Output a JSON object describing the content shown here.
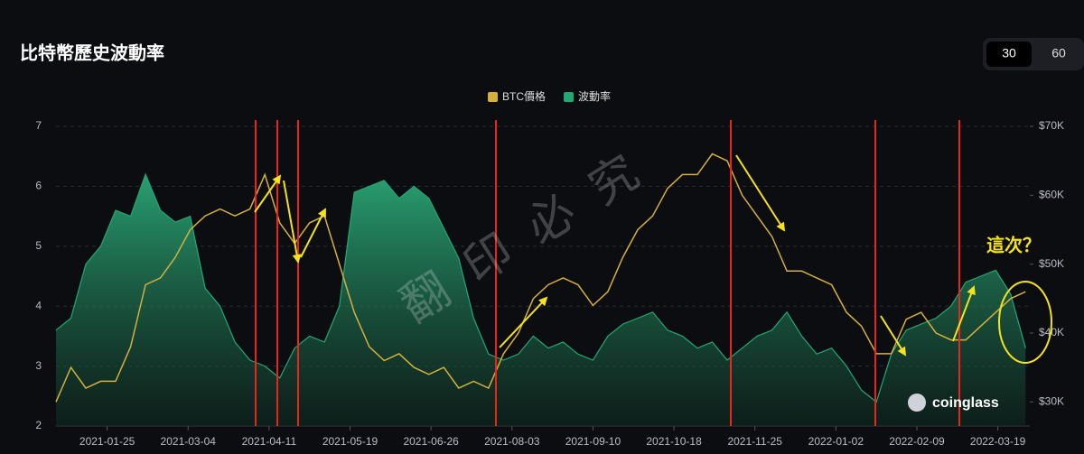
{
  "header": {
    "title": "比特幣歷史波動率"
  },
  "controls": {
    "periods": [
      "30",
      "60"
    ]
  },
  "chart_data": {
    "type": "line",
    "legend": "top",
    "grid": true,
    "annotation": "這次？",
    "watermark": "翻印必究",
    "logo": "coinglass",
    "x": [
      "2021-01-01",
      "2021-01-08",
      "2021-01-15",
      "2021-01-22",
      "2021-01-29",
      "2021-02-05",
      "2021-02-12",
      "2021-02-19",
      "2021-02-26",
      "2021-03-05",
      "2021-03-12",
      "2021-03-19",
      "2021-03-26",
      "2021-04-02",
      "2021-04-09",
      "2021-04-16",
      "2021-04-23",
      "2021-04-30",
      "2021-05-07",
      "2021-05-14",
      "2021-05-21",
      "2021-05-28",
      "2021-06-04",
      "2021-06-11",
      "2021-06-18",
      "2021-06-25",
      "2021-07-02",
      "2021-07-09",
      "2021-07-16",
      "2021-07-23",
      "2021-07-30",
      "2021-08-06",
      "2021-08-13",
      "2021-08-20",
      "2021-08-27",
      "2021-09-03",
      "2021-09-10",
      "2021-09-17",
      "2021-09-24",
      "2021-10-01",
      "2021-10-08",
      "2021-10-15",
      "2021-10-22",
      "2021-10-29",
      "2021-11-05",
      "2021-11-12",
      "2021-11-19",
      "2021-11-26",
      "2021-12-03",
      "2021-12-10",
      "2021-12-17",
      "2021-12-24",
      "2021-12-31",
      "2022-01-07",
      "2022-01-14",
      "2022-01-21",
      "2022-01-28",
      "2022-02-04",
      "2022-02-11",
      "2022-02-18",
      "2022-02-25",
      "2022-03-04",
      "2022-03-11",
      "2022-03-18",
      "2022-03-25",
      "2022-04-01"
    ],
    "xlim": [
      "2021-01-01",
      "2022-04-03"
    ],
    "xticks": [
      "2021-01-25",
      "2021-03-04",
      "2021-04-11",
      "2021-05-19",
      "2021-06-26",
      "2021-08-03",
      "2021-09-10",
      "2021-10-18",
      "2021-11-25",
      "2022-01-02",
      "2022-02-09",
      "2022-03-19"
    ],
    "ylim": [
      2,
      7
    ],
    "yticks": [
      2,
      3,
      4,
      5,
      6,
      7
    ],
    "y2lim": [
      26500,
      70000
    ],
    "y2ticks": [
      {
        "value": 30000,
        "label": "$30K"
      },
      {
        "value": 40000,
        "label": "$40K"
      },
      {
        "value": 50000,
        "label": "$50K"
      },
      {
        "value": 60000,
        "label": "$60K"
      },
      {
        "value": 70000,
        "label": "$70K"
      }
    ],
    "series": [
      {
        "name": "BTC價格",
        "color": "#d4b03c",
        "axis": "y2",
        "values": [
          30000,
          35000,
          32000,
          33000,
          33000,
          38000,
          47000,
          48000,
          51000,
          55000,
          57000,
          58000,
          57000,
          58000,
          63000,
          56000,
          53000,
          56000,
          57000,
          50000,
          43000,
          38000,
          36000,
          37000,
          35000,
          34000,
          35000,
          32000,
          33000,
          32000,
          37000,
          40000,
          45000,
          47000,
          48000,
          47000,
          44000,
          46000,
          51000,
          55000,
          57000,
          61000,
          63000,
          63000,
          66000,
          65000,
          60000,
          57000,
          54000,
          49000,
          49000,
          48000,
          47000,
          43000,
          41000,
          37000,
          37000,
          42000,
          43000,
          40000,
          39000,
          39000,
          41000,
          43000,
          45000,
          46000
        ]
      },
      {
        "name": "波動率",
        "color": "#22a874",
        "values": [
          3.6,
          3.8,
          4.7,
          5.0,
          5.6,
          5.5,
          6.2,
          5.6,
          5.4,
          5.5,
          4.3,
          4.0,
          3.4,
          3.1,
          3.0,
          2.8,
          3.3,
          3.5,
          3.4,
          4.0,
          5.9,
          6.0,
          6.1,
          5.8,
          6.0,
          5.8,
          5.3,
          4.8,
          3.8,
          3.2,
          3.1,
          3.2,
          3.5,
          3.3,
          3.4,
          3.2,
          3.1,
          3.5,
          3.7,
          3.8,
          3.9,
          3.6,
          3.5,
          3.3,
          3.4,
          3.1,
          3.3,
          3.5,
          3.6,
          3.9,
          3.5,
          3.2,
          3.3,
          3.0,
          2.6,
          2.4,
          3.2,
          3.6,
          3.7,
          3.8,
          4.0,
          4.4,
          4.5,
          4.6,
          4.2,
          3.3
        ]
      }
    ]
  }
}
